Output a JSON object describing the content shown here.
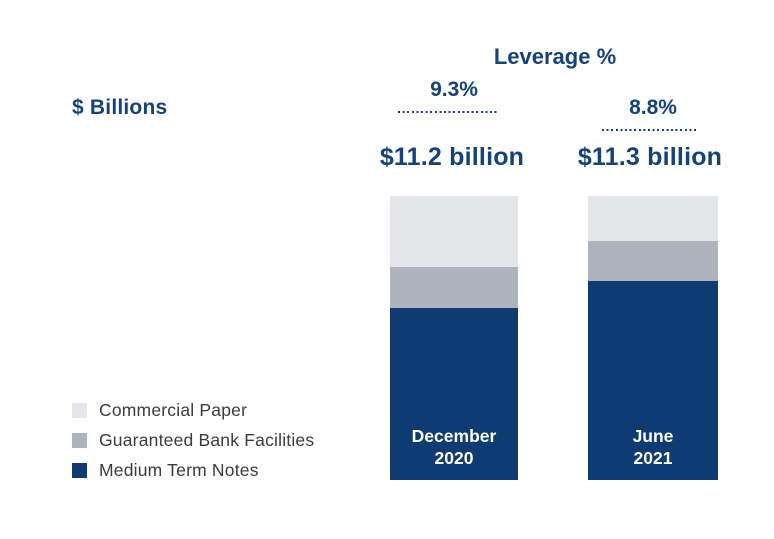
{
  "chart_data": {
    "type": "bar",
    "stacked": true,
    "title": "Leverage %",
    "ylabel": "$ Billions",
    "categories": [
      "December 2020",
      "June 2021"
    ],
    "category_label_lines": [
      [
        "December",
        "2020"
      ],
      [
        "June",
        "2021"
      ]
    ],
    "series": [
      {
        "name": "Commercial Paper",
        "color": "#E4E6E9",
        "values": [
          2.8,
          1.8
        ]
      },
      {
        "name": "Guaranteed Bank Facilities",
        "color": "#AEB3BD",
        "values": [
          1.6,
          1.6
        ]
      },
      {
        "name": "Medium Term Notes",
        "color": "#0E3B72",
        "values": [
          6.8,
          7.9
        ]
      }
    ],
    "totals": [
      11.2,
      11.3
    ],
    "total_labels": [
      "$11.2 billion",
      "$11.3 billion"
    ],
    "leverage_labels": [
      "9.3%",
      "8.8%"
    ],
    "legend_position": "bottom-left",
    "grid": false,
    "axes_hidden": true,
    "text_color": "#14427B",
    "bar_label_color": "#ffffff",
    "legend_text_color": "#3C3C3C"
  }
}
